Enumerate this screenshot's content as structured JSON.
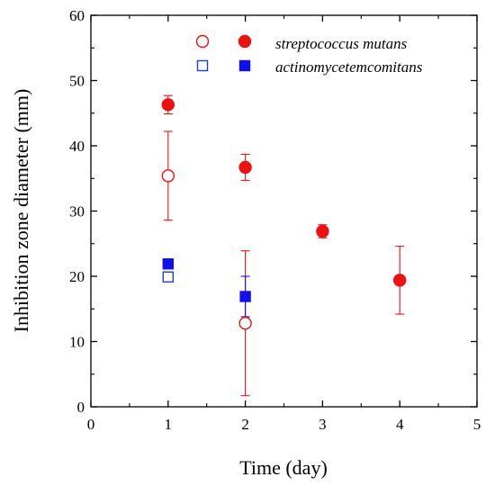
{
  "chart_data": {
    "type": "scatter",
    "xlabel": "Time (day)",
    "ylabel": "Inhibition zone diameter (mm)",
    "xlim": [
      0,
      5
    ],
    "ylim": [
      0,
      60
    ],
    "xticks": [
      "0",
      "1",
      "2",
      "3",
      "4",
      "5"
    ],
    "yticks": [
      "0",
      "10",
      "20",
      "30",
      "40",
      "50",
      "60"
    ],
    "grid": false,
    "legend_position": "top-right",
    "legend_labels": [
      "streptococcus mutans",
      "actinomycetemcomitans"
    ],
    "series": [
      {
        "marker": "circle-open",
        "color": "#ee1111",
        "legend_row": 0,
        "x": [
          1,
          2
        ],
        "y": [
          35.4,
          12.8
        ],
        "err": [
          6.8,
          11.1
        ]
      },
      {
        "marker": "circle-filled",
        "color": "#ee1111",
        "legend_row": 0,
        "x": [
          1,
          2,
          3,
          4
        ],
        "y": [
          46.3,
          36.7,
          26.9,
          19.4
        ],
        "err": [
          1.4,
          2.0,
          1.0,
          5.2
        ]
      },
      {
        "marker": "square-open",
        "color": "#1f3de0",
        "legend_row": 1,
        "x": [
          1
        ],
        "y": [
          19.9
        ],
        "err": [
          0.4
        ]
      },
      {
        "marker": "square-filled",
        "color": "#1111ee",
        "legend_row": 1,
        "x": [
          1,
          2
        ],
        "y": [
          21.9,
          16.9
        ],
        "err": [
          0.6,
          3.1
        ]
      }
    ]
  }
}
